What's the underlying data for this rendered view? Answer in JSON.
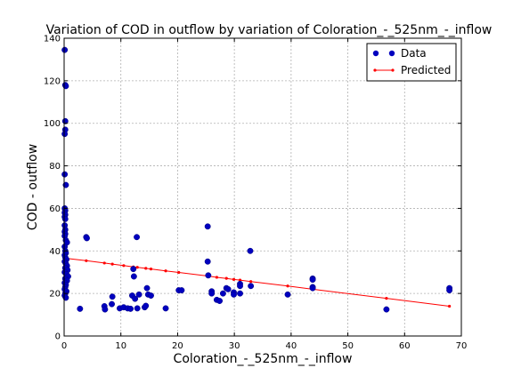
{
  "chart_data": {
    "type": "scatter",
    "title": "Variation of COD in outflow by variation of Coloration_-_525nm_-_inflow",
    "xlabel": "Coloration_-_525nm_-_inflow",
    "ylabel": "COD - outflow",
    "xlim": [
      0,
      70
    ],
    "ylim": [
      0,
      140
    ],
    "xticks": [
      0,
      10,
      20,
      30,
      40,
      50,
      60,
      70
    ],
    "yticks": [
      0,
      20,
      40,
      60,
      80,
      100,
      120,
      140
    ],
    "grid": true,
    "legend_position": "top-right",
    "series": [
      {
        "name": "Data",
        "kind": "scatter",
        "color": "#0000bf",
        "points": [
          [
            0.1,
            134.5
          ],
          [
            0.2,
            118
          ],
          [
            0.3,
            117.5
          ],
          [
            0.2,
            101
          ],
          [
            0.2,
            97
          ],
          [
            0.1,
            95
          ],
          [
            0.1,
            76
          ],
          [
            0.3,
            71
          ],
          [
            0.1,
            60
          ],
          [
            0.2,
            59
          ],
          [
            0.1,
            58
          ],
          [
            0.2,
            57
          ],
          [
            0.1,
            56
          ],
          [
            0.2,
            55
          ],
          [
            0.1,
            52
          ],
          [
            0.2,
            50
          ],
          [
            0.1,
            49
          ],
          [
            0.2,
            48
          ],
          [
            0.1,
            47
          ],
          [
            0.3,
            45
          ],
          [
            0.5,
            44
          ],
          [
            0.1,
            42
          ],
          [
            0.2,
            40
          ],
          [
            0.3,
            39
          ],
          [
            0.1,
            38
          ],
          [
            0.2,
            37
          ],
          [
            0.4,
            36
          ],
          [
            0.1,
            35
          ],
          [
            0.3,
            34
          ],
          [
            0.5,
            33
          ],
          [
            0.2,
            32
          ],
          [
            0.6,
            31
          ],
          [
            0.1,
            30
          ],
          [
            0.4,
            29
          ],
          [
            0.7,
            28
          ],
          [
            0.2,
            27
          ],
          [
            0.5,
            26
          ],
          [
            0.1,
            25
          ],
          [
            0.3,
            24
          ],
          [
            0.2,
            23
          ],
          [
            0.1,
            22
          ],
          [
            0.4,
            21
          ],
          [
            0.2,
            20
          ],
          [
            0.1,
            19
          ],
          [
            0.3,
            18
          ],
          [
            3.9,
            46.5
          ],
          [
            4,
            46
          ],
          [
            2.8,
            12.8
          ],
          [
            7.1,
            14
          ],
          [
            7.2,
            12.5
          ],
          [
            8.4,
            15
          ],
          [
            8.5,
            18.5
          ],
          [
            9.8,
            13
          ],
          [
            10.5,
            13.5
          ],
          [
            11.2,
            13
          ],
          [
            11.7,
            12.8
          ],
          [
            12,
            19
          ],
          [
            12.2,
            31.5
          ],
          [
            12.3,
            28
          ],
          [
            12.5,
            17.5
          ],
          [
            12.8,
            46.5
          ],
          [
            12.9,
            13
          ],
          [
            13.2,
            19.5
          ],
          [
            14.2,
            13.5
          ],
          [
            14.4,
            14.2
          ],
          [
            14.6,
            22.5
          ],
          [
            14.8,
            19.5
          ],
          [
            15.3,
            19
          ],
          [
            17.9,
            13
          ],
          [
            20.2,
            21.5
          ],
          [
            20.7,
            21.5
          ],
          [
            25.3,
            51.5
          ],
          [
            25.3,
            35
          ],
          [
            25.4,
            28.5
          ],
          [
            26,
            21
          ],
          [
            26,
            20
          ],
          [
            26.9,
            17
          ],
          [
            27.4,
            16.5
          ],
          [
            28,
            20
          ],
          [
            28.6,
            22.5
          ],
          [
            28.9,
            22
          ],
          [
            29.9,
            20.5
          ],
          [
            29.9,
            19.5
          ],
          [
            31,
            24.5
          ],
          [
            31,
            23.5
          ],
          [
            31,
            20
          ],
          [
            32.8,
            40
          ],
          [
            32.9,
            23.5
          ],
          [
            39.4,
            19.5
          ],
          [
            43.8,
            27
          ],
          [
            43.8,
            26.5
          ],
          [
            43.8,
            23
          ],
          [
            43.8,
            22.5
          ],
          [
            56.8,
            12.5
          ],
          [
            67.9,
            22.5
          ],
          [
            67.9,
            21.5
          ]
        ]
      },
      {
        "name": "Predicted",
        "kind": "line",
        "color": "#ff0000",
        "points": [
          [
            0.1,
            36.7
          ],
          [
            0.5,
            36.5
          ],
          [
            3.9,
            35.4
          ],
          [
            7.1,
            34.3
          ],
          [
            8.5,
            33.8
          ],
          [
            10.5,
            33.1
          ],
          [
            12.2,
            32.5
          ],
          [
            12.9,
            32.3
          ],
          [
            14.4,
            31.8
          ],
          [
            15.3,
            31.5
          ],
          [
            17.9,
            30.6
          ],
          [
            20.2,
            29.9
          ],
          [
            25.3,
            28.2
          ],
          [
            26.9,
            27.6
          ],
          [
            28.6,
            27.1
          ],
          [
            29.9,
            26.6
          ],
          [
            31,
            26.3
          ],
          [
            32.9,
            25.6
          ],
          [
            39.4,
            23.5
          ],
          [
            43.8,
            22
          ],
          [
            56.8,
            17.7
          ],
          [
            67.9,
            14
          ]
        ]
      }
    ]
  }
}
